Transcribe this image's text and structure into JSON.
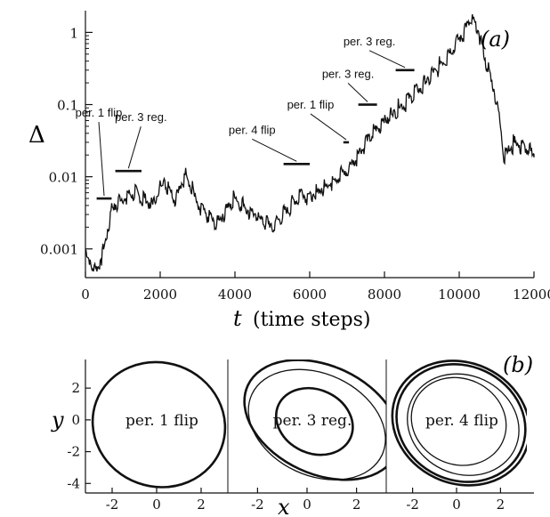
{
  "chart_data": [
    {
      "type": "line",
      "panel_label": "(a)",
      "xlabel_var": "t",
      "xlabel_rest": "(time steps)",
      "ylabel": "Δ",
      "yscale": "log",
      "xlim": [
        0,
        12000
      ],
      "ylim": [
        0.0004,
        2
      ],
      "xticks": [
        0,
        2000,
        4000,
        6000,
        8000,
        10000,
        12000
      ],
      "xtick_labels": [
        "0",
        "2000",
        "4000",
        "6000",
        "8000",
        "10000",
        "12000"
      ],
      "yticks": [
        0.001,
        0.01,
        0.1,
        1
      ],
      "ytick_labels": [
        "0.001",
        "0.01",
        "0.1",
        "1"
      ],
      "series": [
        {
          "x": [
            0,
            300,
            500,
            700,
            1000,
            1300,
            1800,
            2100,
            2400,
            2700,
            3000,
            3500,
            4000,
            4500,
            5000,
            5500,
            5800,
            6000,
            6500,
            7000,
            7500,
            8000,
            8500,
            9000,
            9500,
            10000,
            10300,
            10500,
            10700,
            11000,
            11200,
            11500,
            12000
          ],
          "y": [
            0.0008,
            0.0005,
            0.001,
            0.0035,
            0.005,
            0.006,
            0.004,
            0.009,
            0.005,
            0.011,
            0.004,
            0.0022,
            0.005,
            0.003,
            0.002,
            0.004,
            0.006,
            0.005,
            0.008,
            0.012,
            0.03,
            0.06,
            0.1,
            0.18,
            0.35,
            0.8,
            1.5,
            1.1,
            0.4,
            0.12,
            0.02,
            0.03,
            0.02
          ]
        }
      ],
      "annotations": [
        {
          "text": "per. 1 flip",
          "x_range": [
            300,
            700
          ],
          "y": 0.005
        },
        {
          "text": "per. 3 reg.",
          "x_range": [
            800,
            1500
          ],
          "y": 0.012
        },
        {
          "text": "per. 4 flip",
          "x_range": [
            5300,
            6000
          ],
          "y": 0.015
        },
        {
          "text": "per. 1 flip",
          "x_range": [
            6900,
            7050
          ],
          "y": 0.03
        },
        {
          "text": "per. 3 reg.",
          "x_range": [
            7300,
            7800
          ],
          "y": 0.1
        },
        {
          "text": "per. 3 reg.",
          "x_range": [
            8300,
            8800
          ],
          "y": 0.3
        }
      ]
    },
    {
      "type": "line",
      "panel_label": "(b)",
      "xlabel": "x",
      "ylabel": "y",
      "xlim": [
        -3.2,
        3.2
      ],
      "ylim": [
        -4.6,
        3.8
      ],
      "xticks": [
        -2,
        0,
        2
      ],
      "xtick_labels": [
        "-2",
        "0",
        "2"
      ],
      "yticks": [
        2,
        0,
        -2,
        -4
      ],
      "ytick_labels": [
        "2",
        "0",
        "-2",
        "-4"
      ],
      "subpanels": [
        {
          "label": "per. 1 flip",
          "orbits": [
            {
              "cx": 0.1,
              "cy": -0.3,
              "rx": 3.0,
              "ry": 3.9
            }
          ]
        },
        {
          "label": "per. 3 reg.",
          "orbits": [
            {
              "cx": 0.6,
              "cy": 0.0,
              "rx": 3.3,
              "ry": 3.4
            },
            {
              "cx": 0.4,
              "cy": -0.3,
              "rx": 2.9,
              "ry": 3.2
            },
            {
              "cx": 0.3,
              "cy": -0.1,
              "rx": 1.6,
              "ry": 2.0
            }
          ]
        },
        {
          "label": "per. 4 flip",
          "orbits": [
            {
              "cx": 0.2,
              "cy": -0.2,
              "rx": 3.0,
              "ry": 3.6
            },
            {
              "cx": 0.3,
              "cy": -0.3,
              "rx": 2.6,
              "ry": 3.1
            },
            {
              "cx": 0.1,
              "cy": -0.1,
              "rx": 2.2,
              "ry": 2.7
            },
            {
              "cx": 0.2,
              "cy": -0.2,
              "rx": 3.2,
              "ry": 3.8
            }
          ]
        }
      ]
    }
  ]
}
